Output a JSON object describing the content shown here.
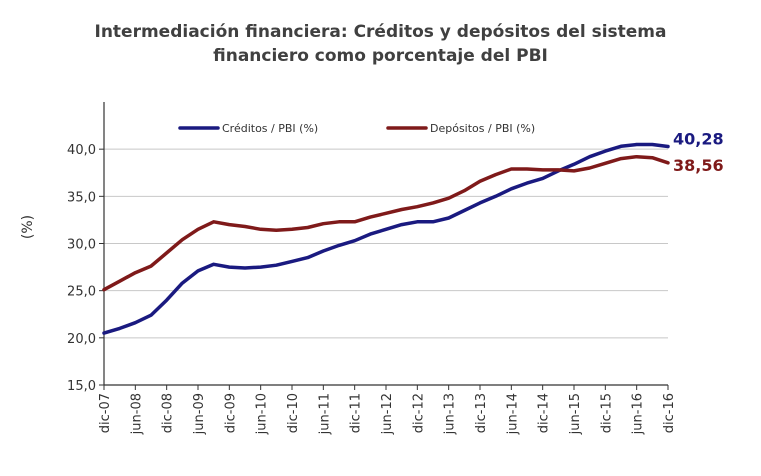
{
  "chart_data": {
    "type": "line",
    "title_line1": "Intermediación financiera: Créditos y depósitos del sistema",
    "title_line2": "financiero como porcentaje del PBI",
    "ylabel": "(%)",
    "xlabel": "",
    "ylim": [
      15,
      45
    ],
    "yticks": [
      "15,0",
      "20,0",
      "25,0",
      "30,0",
      "35,0",
      "40,0"
    ],
    "ytick_values": [
      15,
      20,
      25,
      30,
      35,
      40
    ],
    "x_ticks": [
      "dic-07",
      "jun-08",
      "dic-08",
      "jun-09",
      "dic-09",
      "jun-10",
      "dic-10",
      "jun-11",
      "dic-11",
      "jun-12",
      "dic-12",
      "jun-13",
      "dic-13",
      "jun-14",
      "dic-14",
      "jun-15",
      "dic-15",
      "jun-16",
      "dic-16"
    ],
    "grid": true,
    "legend_position": "top",
    "series": [
      {
        "name": "Créditos / PBI (%)",
        "color": "#1a1a80",
        "end_label": "40,28",
        "values": [
          20.5,
          21.0,
          21.6,
          22.4,
          24.0,
          25.8,
          27.1,
          27.8,
          27.5,
          27.4,
          27.5,
          27.7,
          28.1,
          28.5,
          29.2,
          29.8,
          30.3,
          31.0,
          31.5,
          32.0,
          32.3,
          32.3,
          32.7,
          33.5,
          34.3,
          35.0,
          35.8,
          36.4,
          36.9,
          37.7,
          38.4,
          39.2,
          39.8,
          40.3,
          40.5,
          40.5,
          40.28
        ]
      },
      {
        "name": "Depósitos / PBI (%)",
        "color": "#7f1a1a",
        "end_label": "38,56",
        "values": [
          25.1,
          26.0,
          26.9,
          27.6,
          29.0,
          30.4,
          31.5,
          32.3,
          32.0,
          31.8,
          31.5,
          31.4,
          31.5,
          31.7,
          32.1,
          32.3,
          32.3,
          32.8,
          33.2,
          33.6,
          33.9,
          34.3,
          34.8,
          35.6,
          36.6,
          37.3,
          37.9,
          37.9,
          37.8,
          37.8,
          37.7,
          38.0,
          38.5,
          39.0,
          39.2,
          39.1,
          38.56
        ]
      }
    ]
  }
}
